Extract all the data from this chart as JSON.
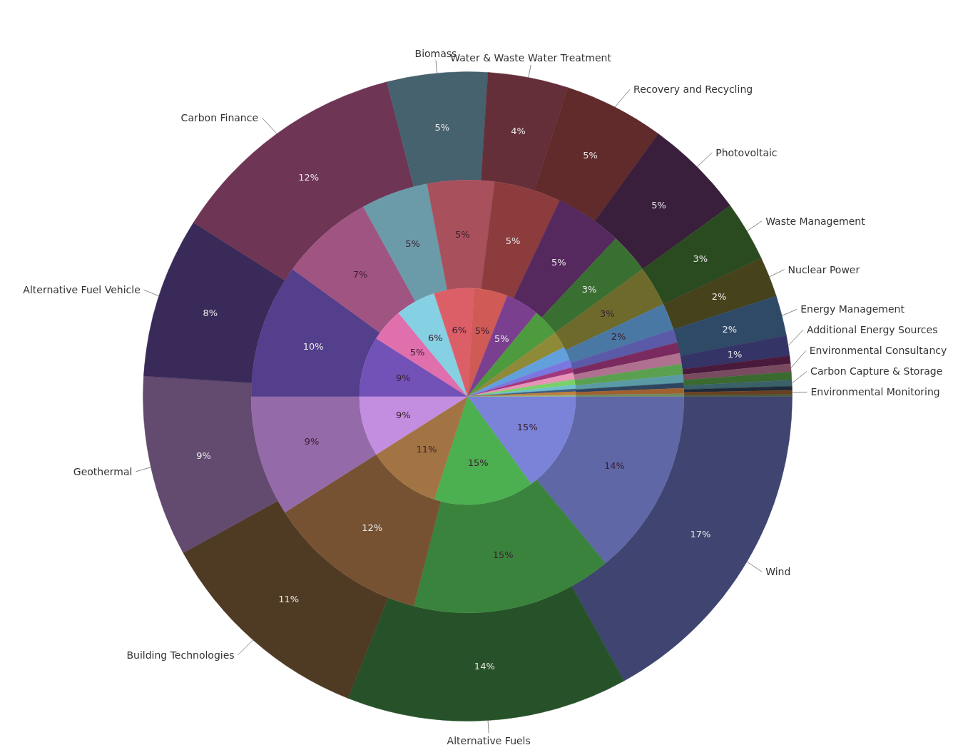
{
  "chart_data": {
    "type": "pie",
    "categories": [
      "Wind",
      "Alternative Fuels",
      "Building Technologies",
      "Geothermal",
      "Alternative Fuel Vehicle",
      "Carbon Finance",
      "Biomass",
      "Water & Waste Water Treatment",
      "Recovery and Recycling",
      "Photovoltaic",
      "Waste Management",
      "Nuclear Power",
      "Energy Management",
      "Additional Energy Sources",
      null,
      "Environmental Consultancy",
      null,
      "Carbon Capture & Storage",
      null,
      "Environmental Monitoring",
      null
    ],
    "series": [
      {
        "values": [
          17,
          14,
          11,
          9,
          8,
          12,
          5,
          4,
          5,
          5,
          3,
          2,
          2,
          1,
          0.4,
          0.4,
          0.4,
          0.3,
          0.2,
          0.2,
          0.1
        ],
        "value_labels": [
          "17%",
          "14%",
          "11%",
          "9%",
          "8%",
          "12%",
          "5%",
          "4%",
          "5%",
          "5%",
          "3%",
          "2%",
          "2%",
          "1%",
          null,
          null,
          null,
          null,
          null,
          null,
          null
        ],
        "colors": [
          "#3f4470",
          "#275229",
          "#4f3a24",
          "#634a6f",
          "#3a2a5a",
          "#6e3555",
          "#46626e",
          "#652f3a",
          "#612b2b",
          "#3a1f3d",
          "#2a4a20",
          "#45421c",
          "#2f4a66",
          "#343466",
          "#4a1a3c",
          "#7a4a60",
          "#3a6a30",
          "#3a6068",
          "#1e2a3a",
          "#6a4020",
          "#4a5a40"
        ]
      },
      {
        "values": [
          14,
          15,
          12,
          9,
          10,
          7,
          5,
          5,
          5,
          5,
          3,
          3,
          2,
          1,
          0.8,
          0.8,
          0.8,
          0.6,
          0.4,
          0.4,
          0.2
        ],
        "value_labels": [
          "14%",
          "15%",
          "12%",
          "9%",
          "10%",
          "7%",
          "5%",
          "5%",
          "5%",
          "5%",
          "3%",
          "3%",
          "2%",
          null,
          null,
          null,
          null,
          null,
          null,
          null,
          null
        ],
        "colors": [
          "#5f67a6",
          "#3a833d",
          "#765233",
          "#946aa8",
          "#533f8b",
          "#a05482",
          "#6b9ba8",
          "#a8505c",
          "#8c3c3c",
          "#55285e",
          "#3a6f32",
          "#6d6a2c",
          "#4a78a5",
          "#5a5aa8",
          "#7a2a5e",
          "#b07090",
          "#5aa050",
          "#5a9aa5",
          "#2e4560",
          "#a06030",
          "#708a60"
        ]
      },
      {
        "values": [
          15,
          15,
          11,
          9,
          9,
          5,
          6,
          6,
          5,
          5,
          4,
          2.5,
          2,
          1.2,
          0.8,
          1,
          0.8,
          0.6,
          0.4,
          0.5,
          0.2
        ],
        "value_labels": [
          "15%",
          "15%",
          "11%",
          "9%",
          "9%",
          "5%",
          "6%",
          "6%",
          "5%",
          "5%",
          null,
          null,
          null,
          null,
          null,
          null,
          null,
          null,
          null,
          null,
          null
        ],
        "colors": [
          "#7b83d9",
          "#4caf50",
          "#a27443",
          "#c38de0",
          "#7352b8",
          "#e06fad",
          "#86d0e3",
          "#dc5f68",
          "#d05a55",
          "#7b3f8f",
          "#4e9a3e",
          "#8f8a38",
          "#62a0dc",
          "#7a78e0",
          "#a0387d",
          "#e894b8",
          "#7bd06a",
          "#70c0cc",
          "#3b5a80",
          "#c07d3c",
          "#90b080"
        ]
      }
    ]
  }
}
